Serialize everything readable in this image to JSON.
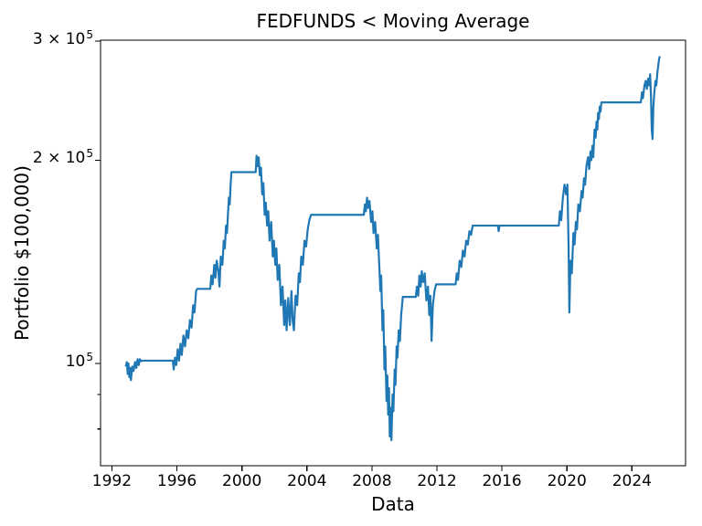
{
  "figure": {
    "background": "#ffffff",
    "colors": {
      "line": "#1f77b4",
      "text": "#000000",
      "spine": "#000000"
    }
  },
  "chart_data": {
    "type": "line",
    "title": "FEDFUNDS < Moving Average",
    "xlabel": "Data",
    "ylabel": "Portfolio $100,000)",
    "legend": null,
    "grid": false,
    "x_axis": {
      "range": [
        1991.3,
        2027.3
      ],
      "ticks": [
        1992,
        1996,
        2000,
        2004,
        2008,
        2012,
        2016,
        2020,
        2024
      ]
    },
    "y_axis": {
      "scale": "log",
      "range": [
        70600,
        301000
      ],
      "major_ticks": [
        {
          "value": 100000,
          "text": "10",
          "exp": "5"
        },
        {
          "value": 200000,
          "text": "2 × 10",
          "exp": "5"
        },
        {
          "value": 300000,
          "text": "3 × 10",
          "exp": "5"
        }
      ],
      "minor_ticks": [
        80000,
        90000
      ]
    },
    "series": [
      {
        "name": "portfolio",
        "color": "#1f77b4",
        "x": [
          1992.85,
          1992.92,
          1992.97,
          1993.02,
          1993.07,
          1993.12,
          1993.17,
          1993.25,
          1993.33,
          1993.42,
          1993.5,
          1993.58,
          1993.65,
          1993.72,
          1993.8,
          1993.88,
          1995.75,
          1995.8,
          1995.88,
          1995.96,
          1996.05,
          1996.13,
          1996.22,
          1996.3,
          1996.4,
          1996.5,
          1996.6,
          1996.7,
          1996.8,
          1996.9,
          1997.0,
          1997.08,
          1997.18,
          1997.25,
          1998.05,
          1998.12,
          1998.2,
          1998.3,
          1998.37,
          1998.45,
          1998.55,
          1998.62,
          1998.7,
          1998.8,
          1998.88,
          1998.95,
          1999.02,
          1999.08,
          1999.15,
          1999.2,
          1999.25,
          1999.3,
          1999.35,
          2000.85,
          2000.9,
          2000.97,
          2001.03,
          2001.1,
          2001.17,
          2001.25,
          2001.32,
          2001.4,
          2001.47,
          2001.55,
          2001.62,
          2001.7,
          2001.8,
          2001.9,
          2001.97,
          2002.05,
          2002.12,
          2002.2,
          2002.3,
          2002.4,
          2002.5,
          2002.6,
          2002.67,
          2002.75,
          2002.85,
          2002.95,
          2003.05,
          2003.12,
          2003.2,
          2003.3,
          2003.4,
          2003.5,
          2003.57,
          2003.65,
          2003.75,
          2003.85,
          2003.95,
          2004.05,
          2004.15,
          2004.25,
          2007.5,
          2007.57,
          2007.63,
          2007.7,
          2007.77,
          2007.85,
          2007.95,
          2008.03,
          2008.1,
          2008.2,
          2008.3,
          2008.37,
          2008.45,
          2008.52,
          2008.57,
          2008.65,
          2008.7,
          2008.77,
          2008.82,
          2008.9,
          2008.95,
          2009.0,
          2009.05,
          2009.1,
          2009.15,
          2009.2,
          2009.27,
          2009.32,
          2009.4,
          2009.45,
          2009.52,
          2009.57,
          2009.65,
          2009.72,
          2009.8,
          2009.9,
          2010.0,
          2010.7,
          2010.77,
          2010.85,
          2010.92,
          2011.0,
          2011.07,
          2011.15,
          2011.25,
          2011.35,
          2011.45,
          2011.53,
          2011.6,
          2011.67,
          2011.75,
          2011.85,
          2011.95,
          2012.0,
          2013.15,
          2013.22,
          2013.3,
          2013.4,
          2013.5,
          2013.6,
          2013.7,
          2013.8,
          2013.9,
          2014.0,
          2014.1,
          2014.2,
          2014.25,
          2015.75,
          2015.8,
          2015.85,
          2019.5,
          2019.57,
          2019.65,
          2019.75,
          2019.85,
          2019.95,
          2020.03,
          2020.1,
          2020.15,
          2020.22,
          2020.3,
          2020.4,
          2020.47,
          2020.55,
          2020.62,
          2020.7,
          2020.8,
          2020.9,
          2020.97,
          2021.05,
          2021.12,
          2021.2,
          2021.3,
          2021.37,
          2021.45,
          2021.5,
          2021.57,
          2021.62,
          2021.7,
          2021.77,
          2021.82,
          2021.87,
          2021.92,
          2021.97,
          2022.02,
          2022.07,
          2022.12,
          2024.55,
          2024.62,
          2024.68,
          2024.77,
          2024.85,
          2024.92,
          2025.0,
          2025.07,
          2025.12,
          2025.17,
          2025.22,
          2025.27,
          2025.32,
          2025.38,
          2025.45,
          2025.5,
          2025.57,
          2025.62,
          2025.67,
          2025.72
        ],
        "y": [
          99000,
          100500,
          96500,
          100000,
          95500,
          98500,
          94500,
          99000,
          97500,
          100500,
          98500,
          101500,
          99500,
          101500,
          100800,
          101000,
          101000,
          98000,
          102000,
          99500,
          105000,
          101000,
          107000,
          103000,
          110000,
          106000,
          112000,
          109000,
          116000,
          113000,
          122000,
          119000,
          128000,
          129000,
          129000,
          135000,
          131000,
          140000,
          134000,
          142000,
          137000,
          130000,
          144000,
          140000,
          152000,
          148000,
          160000,
          156000,
          168000,
          176000,
          172000,
          183000,
          192000,
          192000,
          203000,
          196000,
          202000,
          190000,
          195000,
          178000,
          185000,
          166000,
          173000,
          160000,
          168000,
          152000,
          162000,
          144000,
          152000,
          140000,
          148000,
          133000,
          140000,
          122000,
          130000,
          114000,
          124000,
          112000,
          125000,
          114000,
          128000,
          116000,
          112000,
          126000,
          122000,
          136000,
          132000,
          144000,
          140000,
          152000,
          149000,
          158000,
          163000,
          166000,
          166000,
          172000,
          168000,
          176000,
          170000,
          174000,
          162000,
          168000,
          156000,
          162000,
          148000,
          155000,
          140000,
          128000,
          135000,
          112000,
          120000,
          98000,
          106000,
          88000,
          96000,
          84000,
          92000,
          78000,
          86000,
          77000,
          90000,
          85000,
          98000,
          93000,
          106000,
          102000,
          112000,
          108000,
          118000,
          125500,
          125500,
          125500,
          130000,
          126000,
          135000,
          130000,
          137000,
          132000,
          136000,
          124000,
          130000,
          118000,
          126000,
          108000,
          122000,
          128000,
          131000,
          131000,
          131000,
          136000,
          133000,
          142000,
          139000,
          147000,
          144000,
          152000,
          150000,
          157000,
          155000,
          160000,
          160000,
          160000,
          157000,
          160000,
          160000,
          168000,
          163000,
          176000,
          184000,
          178000,
          184000,
          150000,
          119000,
          142000,
          136000,
          156000,
          150000,
          162000,
          158000,
          172000,
          168000,
          180000,
          176000,
          188000,
          184000,
          196000,
          202000,
          194000,
          206000,
          200000,
          210000,
          202000,
          222000,
          216000,
          228000,
          222000,
          235000,
          230000,
          240000,
          236000,
          243500,
          243500,
          252000,
          247000,
          258000,
          262000,
          255000,
          264000,
          258000,
          268000,
          250000,
          222000,
          215000,
          240000,
          252000,
          262000,
          258000,
          270000,
          276000,
          282000,
          285000
        ]
      }
    ]
  }
}
